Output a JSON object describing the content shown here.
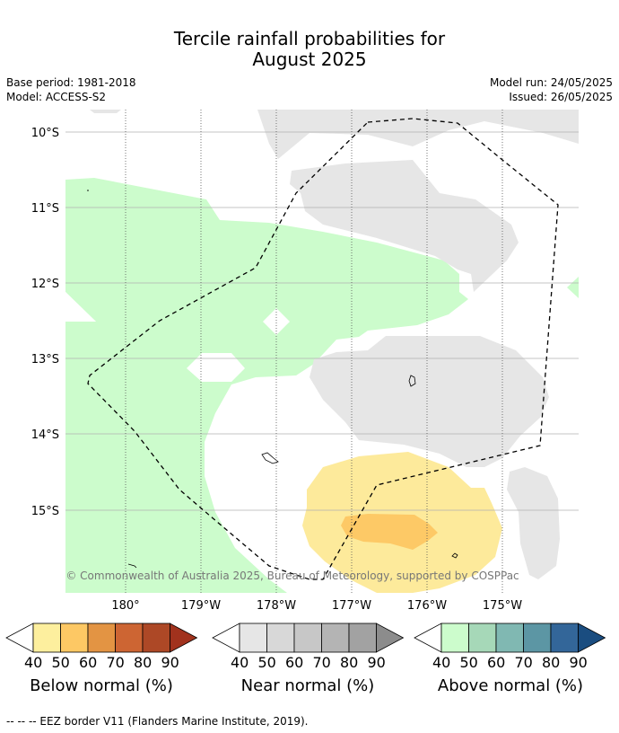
{
  "title_line1": "Tercile rainfall probabilities for",
  "title_line2": "August 2025",
  "meta": {
    "base_period": "Base period: 1981-2018",
    "model": "Model: ACCESS-S2",
    "model_run": "Model run: 24/05/2025",
    "issued": "Issued: 26/05/2025"
  },
  "map": {
    "lat_labels": [
      "10°S",
      "11°S",
      "12°S",
      "13°S",
      "14°S",
      "15°S"
    ],
    "lon_labels": [
      "180°",
      "179°W",
      "178°W",
      "177°W",
      "176°W",
      "175°W"
    ],
    "copyright": "© Commonwealth of Australia 2025, Bureau of Meteorology, supported by COSPPac",
    "colors": {
      "near_normal_40": "#e6e6e6",
      "above_normal_40": "#ccfccc",
      "below_normal_40": "#fdea9b",
      "below_normal_50": "#fdc966",
      "eez_border": "#000000"
    }
  },
  "legend": {
    "ticks": [
      "40",
      "50",
      "60",
      "70",
      "80",
      "90"
    ],
    "below": {
      "label": "Below normal (%)",
      "colors": [
        "#fdef9e",
        "#fdc864",
        "#e39443",
        "#cd6533",
        "#ad4826",
        "#a1321d"
      ]
    },
    "near": {
      "label": "Near normal (%)",
      "colors": [
        "#e6e6e6",
        "#d8d8d8",
        "#c7c7c7",
        "#b4b4b4",
        "#a2a2a2",
        "#8c8c8c"
      ]
    },
    "above": {
      "label": "Above normal (%)",
      "colors": [
        "#ccfccc",
        "#a6d8b8",
        "#80b8b2",
        "#5c96a4",
        "#336699",
        "#1a4d80"
      ]
    }
  },
  "footnote": "--  --  -- EEZ border V11 (Flanders Marine Institute, 2019)."
}
